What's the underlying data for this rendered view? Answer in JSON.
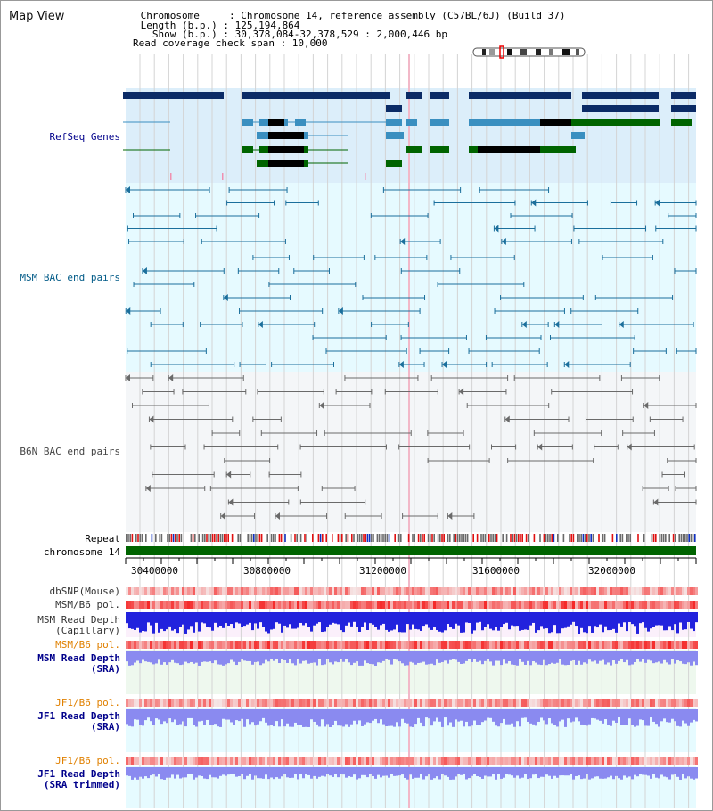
{
  "header": {
    "title": "Map View",
    "info_lines": [
      " Chromosome     : Chromosome 14, reference assembly (C57BL/6J) (Build 37)",
      " Length (b.p.) : 125,194,864",
      "   Show (b.p.) : 30,378,084-32,378,529 : 2,000,446 bp",
      "Read coverage check span : 10,000"
    ]
  },
  "tracks": {
    "refseq": "RefSeq Genes",
    "msm_bac": "MSM BAC end pairs",
    "b6n_bac": "B6N BAC end pairs",
    "repeat": "Repeat",
    "chromosome": "chromosome 14",
    "dbsnp": "dbSNP(Mouse)",
    "msm_b6_pol_1": "MSM/B6 pol.",
    "msm_depth_cap_1": "MSM Read Depth",
    "msm_depth_cap_2": "(Capillary)",
    "msm_b6_pol_2": "MSM/B6 pol.",
    "msm_depth_sra_1": "MSM Read Depth",
    "msm_depth_sra_2": "(SRA)",
    "jf1_b6_pol_1": "JF1/B6 pol.",
    "jf1_depth_sra_1": "JF1 Read Depth",
    "jf1_depth_sra_2": "(SRA)",
    "jf1_b6_pol_2": "JF1/B6 pol.",
    "jf1_depth_trim_1": "JF1 Read Depth",
    "jf1_depth_trim_2": "(SRA trimmed)"
  },
  "axis": {
    "ticks": [
      "30400000",
      "30800000",
      "31200000",
      "31600000",
      "32000000"
    ]
  },
  "colors": {
    "refseq_bg": "#dceefa",
    "msm_bg": "#e6faff",
    "b6n_bg": "#f4f6f8",
    "gene_dark": "#0b2b66",
    "gene_mid": "#3a8fc0",
    "gene_green": "#006400",
    "chromosome": "#006400",
    "depth_blue": "#2222dd",
    "depth_light": "#8a8af0",
    "label_blue": "#00008b",
    "label_orange": "#e08000",
    "label_teal": "#005a87",
    "label_grey": "#444444"
  }
}
